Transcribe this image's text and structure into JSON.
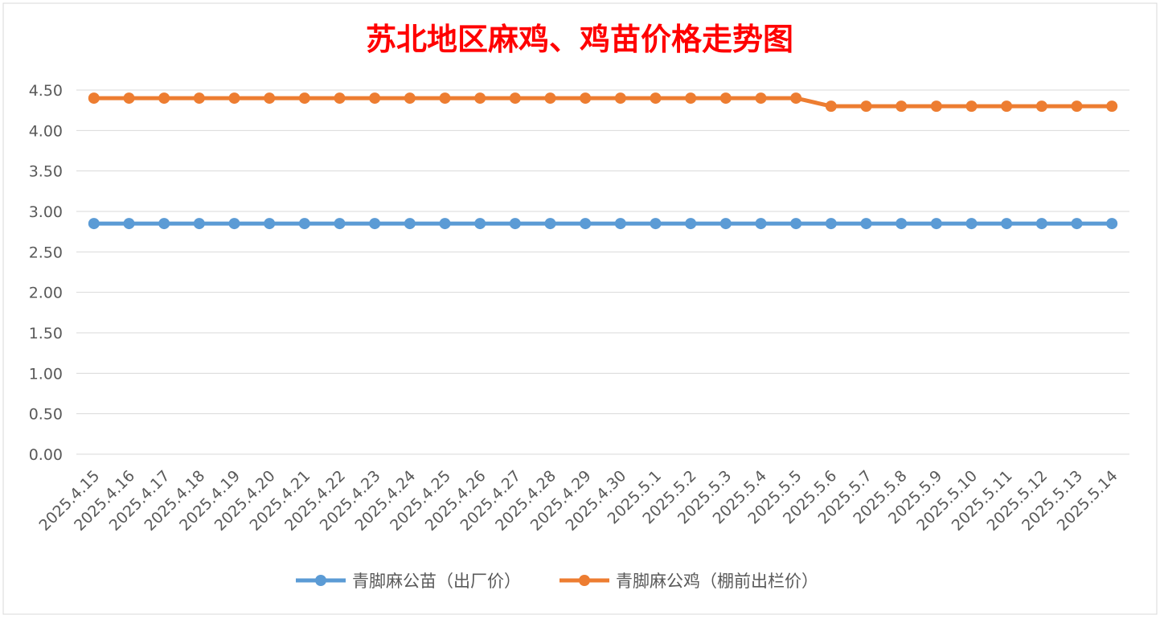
{
  "chart_data": {
    "type": "line",
    "title": "苏北地区麻鸡、鸡苗价格走势图",
    "title_color": "#ff0000",
    "xlabel": "",
    "ylabel": "",
    "ylim": [
      0,
      4.5
    ],
    "yticks": [
      "0.00",
      "0.50",
      "1.00",
      "1.50",
      "2.00",
      "2.50",
      "3.00",
      "3.50",
      "4.00",
      "4.50"
    ],
    "grid": true,
    "legend_position": "bottom",
    "categories": [
      "2025.4.15",
      "2025.4.16",
      "2025.4.17",
      "2025.4.18",
      "2025.4.19",
      "2025.4.20",
      "2025.4.21",
      "2025.4.22",
      "2025.4.23",
      "2025.4.24",
      "2025.4.25",
      "2025.4.26",
      "2025.4.27",
      "2025.4.28",
      "2025.4.29",
      "2025.4.30",
      "2025.5.1",
      "2025.5.2",
      "2025.5.3",
      "2025.5.4",
      "2025.5.5",
      "2025.5.6",
      "2025.5.7",
      "2025.5.8",
      "2025.5.9",
      "2025.5.10",
      "2025.5.11",
      "2025.5.12",
      "2025.5.13",
      "2025.5.14"
    ],
    "series": [
      {
        "name": "青脚麻公苗（出厂价）",
        "color": "#5b9bd5",
        "values": [
          2.85,
          2.85,
          2.85,
          2.85,
          2.85,
          2.85,
          2.85,
          2.85,
          2.85,
          2.85,
          2.85,
          2.85,
          2.85,
          2.85,
          2.85,
          2.85,
          2.85,
          2.85,
          2.85,
          2.85,
          2.85,
          2.85,
          2.85,
          2.85,
          2.85,
          2.85,
          2.85,
          2.85,
          2.85,
          2.85
        ]
      },
      {
        "name": "青脚麻公鸡（棚前出栏价）",
        "color": "#ed7d31",
        "values": [
          4.4,
          4.4,
          4.4,
          4.4,
          4.4,
          4.4,
          4.4,
          4.4,
          4.4,
          4.4,
          4.4,
          4.4,
          4.4,
          4.4,
          4.4,
          4.4,
          4.4,
          4.4,
          4.4,
          4.4,
          4.4,
          4.3,
          4.3,
          4.3,
          4.3,
          4.3,
          4.3,
          4.3,
          4.3,
          4.3
        ]
      }
    ]
  }
}
